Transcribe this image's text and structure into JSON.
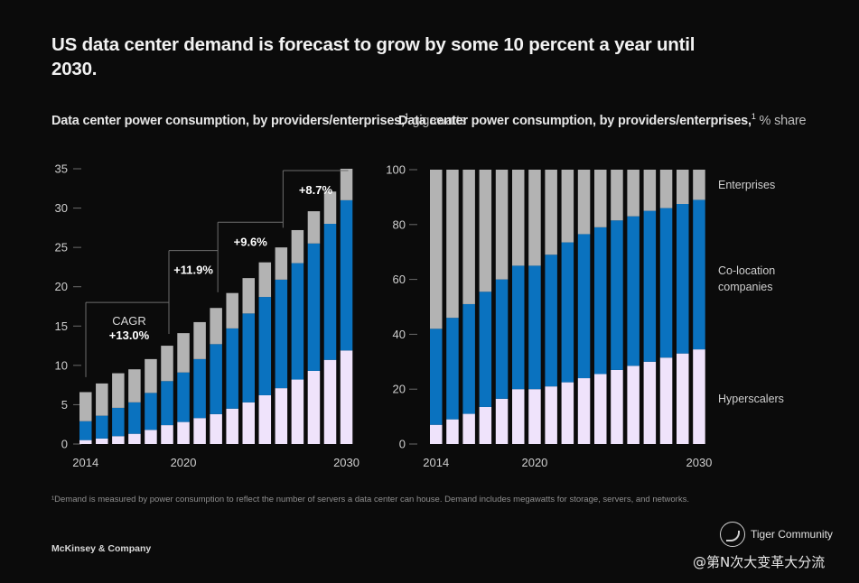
{
  "title": "US data center demand is forecast to grow by some 10 percent a year until 2030.",
  "footnote": "¹Demand is measured by power consumption to reflect the number of servers a data center can house. Demand includes megawatts for storage, servers, and networks.",
  "brand": "McKinsey & Company",
  "watermark": {
    "icon": "tiger-logo-icon",
    "name": "Tiger Community",
    "handle": "@第N次大变革大分流"
  },
  "colors": {
    "hyperscalers": "#efe3fb",
    "colocation": "#0a72bf",
    "enterprises": "#b3b3b3",
    "background": "#0b0b0b"
  },
  "chart_data": [
    {
      "type": "bar",
      "stacked": true,
      "title_bold": "Data center power consumption, by providers/enterprises,",
      "title_sup": "1",
      "title_unit": "gigawatts",
      "xlabel": "",
      "ylabel": "gigawatts",
      "ylim": [
        0,
        35
      ],
      "yticks": [
        0,
        5,
        10,
        15,
        20,
        25,
        30,
        35
      ],
      "x_tick_labels": {
        "2014": "2014",
        "2020": "2020",
        "2030": "2030"
      },
      "categories": [
        "2014",
        "2015",
        "2016",
        "2017",
        "2018",
        "2019",
        "2020",
        "2021",
        "2022",
        "2023",
        "2024",
        "2025",
        "2026",
        "2027",
        "2028",
        "2029",
        "2030"
      ],
      "series": [
        {
          "name": "Hyperscalers",
          "color_key": "hyperscalers",
          "values": [
            0.5,
            0.7,
            1.0,
            1.3,
            1.8,
            2.4,
            2.8,
            3.3,
            3.8,
            4.5,
            5.3,
            6.2,
            7.1,
            8.2,
            9.3,
            10.7,
            11.9
          ]
        },
        {
          "name": "Co-location companies",
          "color_key": "colocation",
          "values": [
            2.4,
            2.9,
            3.6,
            4.0,
            4.7,
            5.6,
            6.3,
            7.5,
            8.9,
            10.2,
            11.3,
            12.5,
            13.8,
            14.8,
            16.2,
            17.3,
            19.1
          ]
        },
        {
          "name": "Enterprises",
          "color_key": "enterprises",
          "values": [
            3.7,
            4.1,
            4.4,
            4.2,
            4.3,
            4.5,
            5.0,
            4.7,
            4.6,
            4.5,
            4.5,
            4.4,
            4.1,
            4.2,
            4.1,
            4.1,
            4.0
          ]
        }
      ],
      "totals": [
        6.6,
        7.7,
        9.0,
        9.5,
        10.8,
        12.5,
        14.1,
        15.5,
        17.3,
        19.2,
        21.1,
        23.1,
        25.0,
        27.2,
        29.6,
        32.1,
        35.0
      ],
      "annotations": [
        {
          "label": "CAGR",
          "value": "+13.0%",
          "from": "2014",
          "to": "2019"
        },
        {
          "label": "",
          "value": "+11.9%",
          "from": "2019",
          "to": "2022"
        },
        {
          "label": "",
          "value": "+9.6%",
          "from": "2022",
          "to": "2026"
        },
        {
          "label": "",
          "value": "+8.7%",
          "from": "2026",
          "to": "2030"
        }
      ],
      "legend": "none",
      "grid": false
    },
    {
      "type": "bar",
      "stacked": true,
      "title_bold": "Data center power consumption, by providers/enterprises,",
      "title_sup": "1",
      "title_unit": "% share",
      "xlabel": "",
      "ylabel": "% share",
      "ylim": [
        0,
        100
      ],
      "yticks": [
        0,
        20,
        40,
        60,
        80,
        100
      ],
      "x_tick_labels": {
        "2014": "2014",
        "2020": "2020",
        "2030": "2030"
      },
      "categories": [
        "2014",
        "2015",
        "2016",
        "2017",
        "2018",
        "2019",
        "2020",
        "2021",
        "2022",
        "2023",
        "2024",
        "2025",
        "2026",
        "2027",
        "2028",
        "2029",
        "2030"
      ],
      "series": [
        {
          "name": "Hyperscalers",
          "color_key": "hyperscalers",
          "values": [
            7,
            9,
            11,
            13.5,
            16.5,
            20,
            20,
            21,
            22.5,
            24,
            25.5,
            27,
            28.5,
            30,
            31.5,
            33,
            34.5
          ]
        },
        {
          "name": "Co-location companies",
          "color_key": "colocation",
          "values": [
            35,
            37,
            40,
            42,
            43.5,
            45,
            45,
            48,
            51,
            52.5,
            53.5,
            54.5,
            54.5,
            55,
            54.5,
            54.5,
            54.5
          ]
        },
        {
          "name": "Enterprises",
          "color_key": "enterprises",
          "values": [
            58,
            54,
            49,
            44.5,
            40,
            35,
            35,
            31,
            26.5,
            23.5,
            21,
            18.5,
            17,
            15,
            14,
            12.5,
            11
          ]
        }
      ],
      "legend": "right",
      "legend_labels": [
        "Enterprises",
        "Co-location companies",
        "Hyperscalers"
      ],
      "grid": false
    }
  ]
}
